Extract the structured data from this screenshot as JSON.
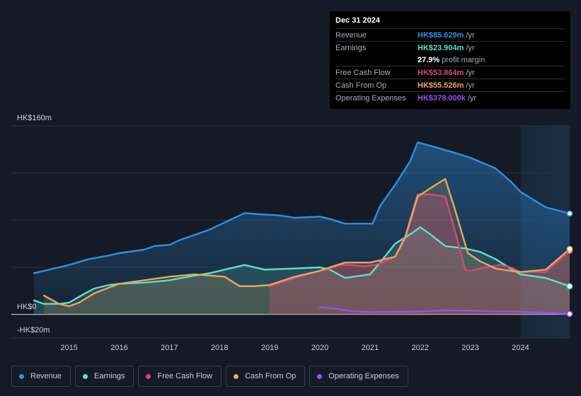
{
  "tooltip": {
    "date": "Dec 31 2024",
    "rows": [
      {
        "label": "Revenue",
        "value": "HK$85.629m",
        "unit": "/yr",
        "color": "#2e8fe0"
      },
      {
        "label": "Earnings",
        "value": "HK$23.904m",
        "unit": "/yr",
        "color": "#5de0c8"
      },
      {
        "label": "",
        "value": "27.9%",
        "unit": "profit margin",
        "color": "#ffffff"
      },
      {
        "label": "Free Cash Flow",
        "value": "HK$53.864m",
        "unit": "/yr",
        "color": "#d8457a"
      },
      {
        "label": "Cash From Op",
        "value": "HK$55.526m",
        "unit": "/yr",
        "color": "#e8a857"
      },
      {
        "label": "Operating Expenses",
        "value": "HK$378.000k",
        "unit": "/yr",
        "color": "#9a4ff0"
      }
    ]
  },
  "legend": [
    {
      "label": "Revenue",
      "color": "#2e8fe0"
    },
    {
      "label": "Earnings",
      "color": "#5de0c8"
    },
    {
      "label": "Free Cash Flow",
      "color": "#d8457a"
    },
    {
      "label": "Cash From Op",
      "color": "#e8a857"
    },
    {
      "label": "Operating Expenses",
      "color": "#9a4ff0"
    }
  ],
  "chart_data": {
    "type": "area",
    "title": "",
    "ylabel_top": "HK$160m",
    "ylabel_zero": "HK$0",
    "ylabel_bottom": "-HK$20m",
    "ylim": [
      -20,
      160
    ],
    "xlim": [
      2014.3,
      2024.98
    ],
    "x_ticks": [
      "2015",
      "2016",
      "2017",
      "2018",
      "2019",
      "2020",
      "2021",
      "2022",
      "2023",
      "2024"
    ],
    "highlight_from": 2024.0,
    "series": [
      {
        "name": "Revenue",
        "color": "#2e8fe0",
        "points": [
          [
            2014.3,
            35
          ],
          [
            2014.6,
            38
          ],
          [
            2015.0,
            42
          ],
          [
            2015.4,
            47
          ],
          [
            2015.8,
            50
          ],
          [
            2016.0,
            52
          ],
          [
            2016.5,
            55
          ],
          [
            2016.7,
            58
          ],
          [
            2017.0,
            59
          ],
          [
            2017.2,
            63
          ],
          [
            2017.8,
            72
          ],
          [
            2018.2,
            80
          ],
          [
            2018.5,
            86
          ],
          [
            2018.8,
            85
          ],
          [
            2019.2,
            84
          ],
          [
            2019.5,
            82
          ],
          [
            2020.0,
            83
          ],
          [
            2020.2,
            81
          ],
          [
            2020.5,
            77
          ],
          [
            2020.8,
            77
          ],
          [
            2021.05,
            77
          ],
          [
            2021.2,
            92
          ],
          [
            2021.5,
            110
          ],
          [
            2021.8,
            130
          ],
          [
            2021.95,
            146
          ],
          [
            2022.3,
            142
          ],
          [
            2022.7,
            137
          ],
          [
            2023.0,
            133
          ],
          [
            2023.5,
            124
          ],
          [
            2023.8,
            113
          ],
          [
            2024.0,
            104
          ],
          [
            2024.5,
            91
          ],
          [
            2024.98,
            85.6
          ]
        ]
      },
      {
        "name": "Earnings",
        "color": "#5de0c8",
        "points": [
          [
            2014.3,
            12
          ],
          [
            2014.5,
            9
          ],
          [
            2014.8,
            9
          ],
          [
            2015.0,
            10
          ],
          [
            2015.2,
            15
          ],
          [
            2015.5,
            22
          ],
          [
            2015.8,
            25
          ],
          [
            2016.0,
            26
          ],
          [
            2016.5,
            27
          ],
          [
            2017.0,
            29
          ],
          [
            2017.5,
            33
          ],
          [
            2017.8,
            35
          ],
          [
            2018.1,
            38
          ],
          [
            2018.5,
            42
          ],
          [
            2018.9,
            38
          ],
          [
            2019.5,
            39
          ],
          [
            2020.0,
            40
          ],
          [
            2020.2,
            38
          ],
          [
            2020.5,
            31
          ],
          [
            2021.0,
            34
          ],
          [
            2021.2,
            44
          ],
          [
            2021.5,
            60
          ],
          [
            2021.8,
            68
          ],
          [
            2022.0,
            74
          ],
          [
            2022.2,
            68
          ],
          [
            2022.5,
            58
          ],
          [
            2022.9,
            56
          ],
          [
            2023.2,
            53
          ],
          [
            2023.5,
            47
          ],
          [
            2023.8,
            39
          ],
          [
            2024.0,
            34
          ],
          [
            2024.5,
            31
          ],
          [
            2024.98,
            23.9
          ]
        ]
      },
      {
        "name": "Free Cash Flow",
        "color": "#d8457a",
        "points": [
          [
            2019.0,
            24
          ],
          [
            2019.5,
            31
          ],
          [
            2020.0,
            37
          ],
          [
            2020.2,
            39
          ],
          [
            2020.4,
            42
          ],
          [
            2020.6,
            42
          ],
          [
            2020.9,
            41
          ],
          [
            2021.1,
            42
          ],
          [
            2021.3,
            45
          ],
          [
            2021.5,
            49
          ],
          [
            2021.7,
            66
          ],
          [
            2021.95,
            102
          ],
          [
            2022.2,
            102
          ],
          [
            2022.5,
            100
          ],
          [
            2022.7,
            70
          ],
          [
            2022.9,
            38
          ],
          [
            2023.0,
            37
          ],
          [
            2023.3,
            40
          ],
          [
            2023.6,
            42
          ],
          [
            2023.8,
            40
          ],
          [
            2024.0,
            36
          ],
          [
            2024.5,
            36
          ],
          [
            2024.98,
            53.9
          ]
        ]
      },
      {
        "name": "Cash From Op",
        "color": "#e8a857",
        "points": [
          [
            2014.5,
            16
          ],
          [
            2014.8,
            9
          ],
          [
            2015.0,
            7
          ],
          [
            2015.2,
            10
          ],
          [
            2015.5,
            18
          ],
          [
            2016.0,
            26
          ],
          [
            2016.5,
            29
          ],
          [
            2017.0,
            32
          ],
          [
            2017.5,
            34
          ],
          [
            2018.1,
            32
          ],
          [
            2018.4,
            24
          ],
          [
            2018.7,
            24
          ],
          [
            2019.0,
            25
          ],
          [
            2019.5,
            32
          ],
          [
            2020.0,
            37
          ],
          [
            2020.2,
            40
          ],
          [
            2020.5,
            44
          ],
          [
            2021.0,
            44
          ],
          [
            2021.2,
            46
          ],
          [
            2021.5,
            49
          ],
          [
            2021.7,
            65
          ],
          [
            2021.95,
            100
          ],
          [
            2022.2,
            107
          ],
          [
            2022.5,
            115
          ],
          [
            2022.7,
            88
          ],
          [
            2022.95,
            52
          ],
          [
            2023.2,
            45
          ],
          [
            2023.5,
            39
          ],
          [
            2023.8,
            37
          ],
          [
            2024.0,
            36
          ],
          [
            2024.5,
            38
          ],
          [
            2024.98,
            55.5
          ]
        ]
      },
      {
        "name": "Operating Expenses",
        "color": "#9a4ff0",
        "points": [
          [
            2020.0,
            6
          ],
          [
            2020.3,
            5
          ],
          [
            2020.6,
            3
          ],
          [
            2021.0,
            2
          ],
          [
            2021.4,
            2.2
          ],
          [
            2022.0,
            2.5
          ],
          [
            2022.5,
            3.4
          ],
          [
            2023.0,
            3.2
          ],
          [
            2023.5,
            2.6
          ],
          [
            2024.0,
            2.4
          ],
          [
            2024.98,
            0.4
          ]
        ]
      }
    ]
  }
}
